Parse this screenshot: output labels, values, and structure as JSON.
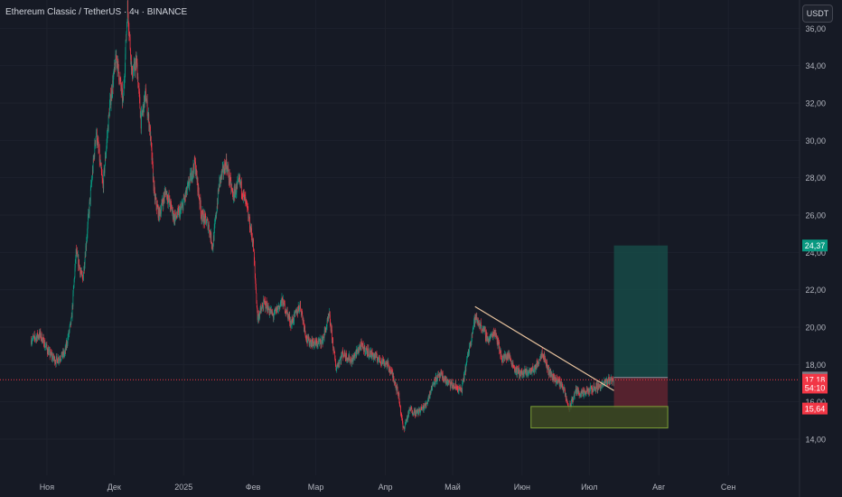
{
  "header": {
    "title": "Ethereum Classic / TetherUS · 4ч · BINANCE",
    "currency_label": "USDT"
  },
  "chart_data": {
    "type": "candlestick",
    "symbol": "Ethereum Classic / TetherUS",
    "interval": "4ч",
    "exchange": "BINANCE",
    "x_ticks": [
      "Ноя",
      "Дек",
      "2025",
      "Фев",
      "Мар",
      "Апр",
      "Май",
      "Июн",
      "Июл",
      "Авг",
      "Сен"
    ],
    "y_ticks": [
      "14,00",
      "16,00",
      "18,00",
      "20,00",
      "22,00",
      "24,00",
      "26,00",
      "28,00",
      "30,00",
      "32,00",
      "34,00",
      "36,00"
    ],
    "ylim": [
      13.2,
      37.2
    ],
    "price_path": [
      [
        "2024-10-25",
        19.3
      ],
      [
        "2024-10-29",
        19.6
      ],
      [
        "2024-11-02",
        18.6
      ],
      [
        "2024-11-05",
        18.2
      ],
      [
        "2024-11-09",
        18.6
      ],
      [
        "2024-11-12",
        20.4
      ],
      [
        "2024-11-14",
        24.0
      ],
      [
        "2024-11-17",
        22.5
      ],
      [
        "2024-11-20",
        26.5
      ],
      [
        "2024-11-23",
        30.5
      ],
      [
        "2024-11-26",
        27.5
      ],
      [
        "2024-11-29",
        31.8
      ],
      [
        "2024-12-02",
        34.5
      ],
      [
        "2024-12-05",
        32.0
      ],
      [
        "2024-12-07",
        37.2
      ],
      [
        "2024-12-09",
        33.5
      ],
      [
        "2024-12-11",
        34.2
      ],
      [
        "2024-12-13",
        31.0
      ],
      [
        "2024-12-15",
        32.5
      ],
      [
        "2024-12-17",
        30.5
      ],
      [
        "2024-12-19",
        27.0
      ],
      [
        "2024-12-21",
        26.0
      ],
      [
        "2024-12-24",
        27.3
      ],
      [
        "2024-12-28",
        25.8
      ],
      [
        "2024-12-31",
        26.3
      ],
      [
        "2025-01-03",
        27.5
      ],
      [
        "2025-01-06",
        28.8
      ],
      [
        "2025-01-09",
        26.0
      ],
      [
        "2025-01-12",
        25.5
      ],
      [
        "2025-01-14",
        24.3
      ],
      [
        "2025-01-17",
        27.8
      ],
      [
        "2025-01-20",
        28.8
      ],
      [
        "2025-01-23",
        27.0
      ],
      [
        "2025-01-26",
        27.8
      ],
      [
        "2025-01-29",
        26.5
      ],
      [
        "2025-02-01",
        24.5
      ],
      [
        "2025-02-03",
        20.5
      ],
      [
        "2025-02-06",
        21.3
      ],
      [
        "2025-02-10",
        20.6
      ],
      [
        "2025-02-14",
        21.4
      ],
      [
        "2025-02-18",
        20.2
      ],
      [
        "2025-02-22",
        21.2
      ],
      [
        "2025-02-25",
        19.3
      ],
      [
        "2025-03-01",
        19.1
      ],
      [
        "2025-03-04",
        19.3
      ],
      [
        "2025-03-07",
        20.6
      ],
      [
        "2025-03-10",
        17.8
      ],
      [
        "2025-03-13",
        18.6
      ],
      [
        "2025-03-17",
        18.2
      ],
      [
        "2025-03-21",
        19.0
      ],
      [
        "2025-03-25",
        18.6
      ],
      [
        "2025-03-29",
        18.3
      ],
      [
        "2025-04-02",
        18.0
      ],
      [
        "2025-04-05",
        17.2
      ],
      [
        "2025-04-07",
        16.3
      ],
      [
        "2025-04-09",
        14.5
      ],
      [
        "2025-04-12",
        15.6
      ],
      [
        "2025-04-15",
        15.4
      ],
      [
        "2025-04-19",
        15.8
      ],
      [
        "2025-04-23",
        17.2
      ],
      [
        "2025-04-26",
        17.4
      ],
      [
        "2025-04-29",
        17.0
      ],
      [
        "2025-05-02",
        16.8
      ],
      [
        "2025-05-05",
        16.6
      ],
      [
        "2025-05-08",
        18.6
      ],
      [
        "2025-05-11",
        20.5
      ],
      [
        "2025-05-14",
        20.0
      ],
      [
        "2025-05-17",
        19.3
      ],
      [
        "2025-05-20",
        19.8
      ],
      [
        "2025-05-23",
        18.3
      ],
      [
        "2025-05-26",
        18.5
      ],
      [
        "2025-05-29",
        17.7
      ],
      [
        "2025-06-01",
        17.5
      ],
      [
        "2025-06-04",
        17.6
      ],
      [
        "2025-06-07",
        17.8
      ],
      [
        "2025-06-10",
        18.7
      ],
      [
        "2025-06-13",
        17.6
      ],
      [
        "2025-06-16",
        17.2
      ],
      [
        "2025-06-19",
        16.9
      ],
      [
        "2025-06-22",
        15.6
      ],
      [
        "2025-06-25",
        16.6
      ],
      [
        "2025-06-28",
        16.4
      ],
      [
        "2025-07-01",
        16.6
      ],
      [
        "2025-07-04",
        16.8
      ],
      [
        "2025-07-07",
        16.9
      ],
      [
        "2025-07-10",
        17.2
      ],
      [
        "2025-07-12",
        17.18
      ]
    ],
    "trendline": {
      "from": [
        "2025-05-11",
        21.1
      ],
      "to": [
        "2025-07-12",
        16.6
      ]
    },
    "support_zone": {
      "from": "2025-06-05",
      "to": "2025-08-05",
      "low": 14.6,
      "high": 15.75
    },
    "long_position": {
      "from": "2025-07-12",
      "to": "2025-08-05",
      "entry": 17.3,
      "target": 24.37,
      "stop": 15.64
    },
    "current_price": 17.18,
    "price_labels": [
      {
        "value": 24.37,
        "text": "24,37",
        "color": "#089981",
        "text_color": "#ffffff"
      },
      {
        "value": 17.3,
        "text": "17,30",
        "color": "#787b86",
        "text_color": "#ffffff"
      },
      {
        "value": 17.18,
        "text": "17,18",
        "color": "#f23645",
        "text_color": "#ffffff"
      },
      {
        "value": 16.76,
        "text": "54:10",
        "color": "#f23645",
        "text_color": "#ffffff"
      },
      {
        "value": 15.64,
        "text": "15,64",
        "color": "#f23645",
        "text_color": "#ffffff"
      }
    ],
    "colors": {
      "background": "#161a25",
      "up": "#089981",
      "down": "#f23645",
      "trendline": "#e8c39e",
      "profit_zone": "#164a46",
      "loss_zone": "#5c2430",
      "support_zone": "#3d4a22",
      "support_border": "#7da036",
      "grid": "#1e222d"
    }
  }
}
